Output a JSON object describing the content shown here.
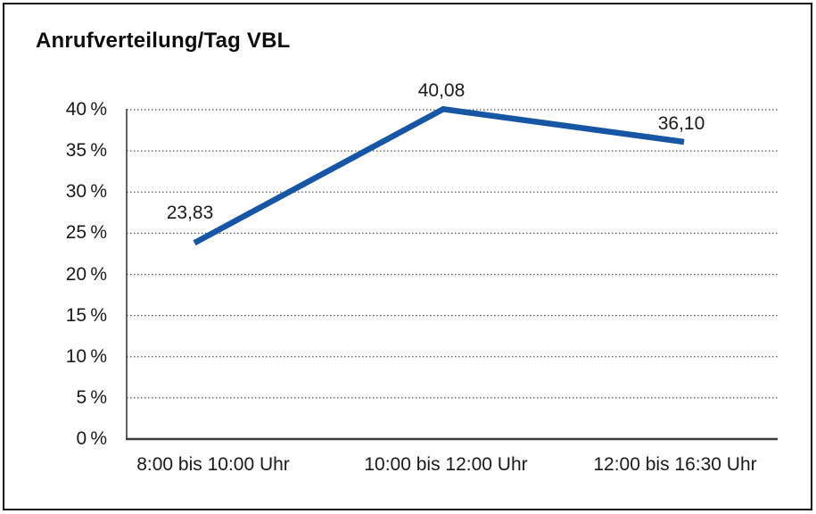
{
  "window": {
    "background": "#ffffff",
    "frame_border_color": "#151515"
  },
  "chart_data": {
    "type": "line",
    "title": "Anrufverteilung/Tag VBL",
    "categories": [
      "8:00 bis 10:00 Uhr",
      "10:00 bis 12:00 Uhr",
      "12:00 bis 16:30 Uhr"
    ],
    "series": [
      {
        "name": "Anrufverteilung/Tag VBL",
        "values": [
          23.83,
          40.08,
          36.1
        ]
      }
    ],
    "point_labels": [
      "23,83",
      "40,08",
      "36,10"
    ],
    "y_tick_values": [
      0,
      5,
      10,
      15,
      20,
      25,
      30,
      35,
      40
    ],
    "y_tick_labels": [
      "0 %",
      "5 %",
      "10 %",
      "15 %",
      "20 %",
      "25 %",
      "30 %",
      "35 %",
      "40 %"
    ],
    "xlabel": "",
    "ylabel": "",
    "ylim": [
      0,
      40
    ],
    "grid": "horizontal-dotted",
    "legend": "none",
    "colors": {
      "line": "#1656A4",
      "grid": "#5a5a5a",
      "axis": "#3c3c3c",
      "text": "#1a1a1a"
    }
  }
}
